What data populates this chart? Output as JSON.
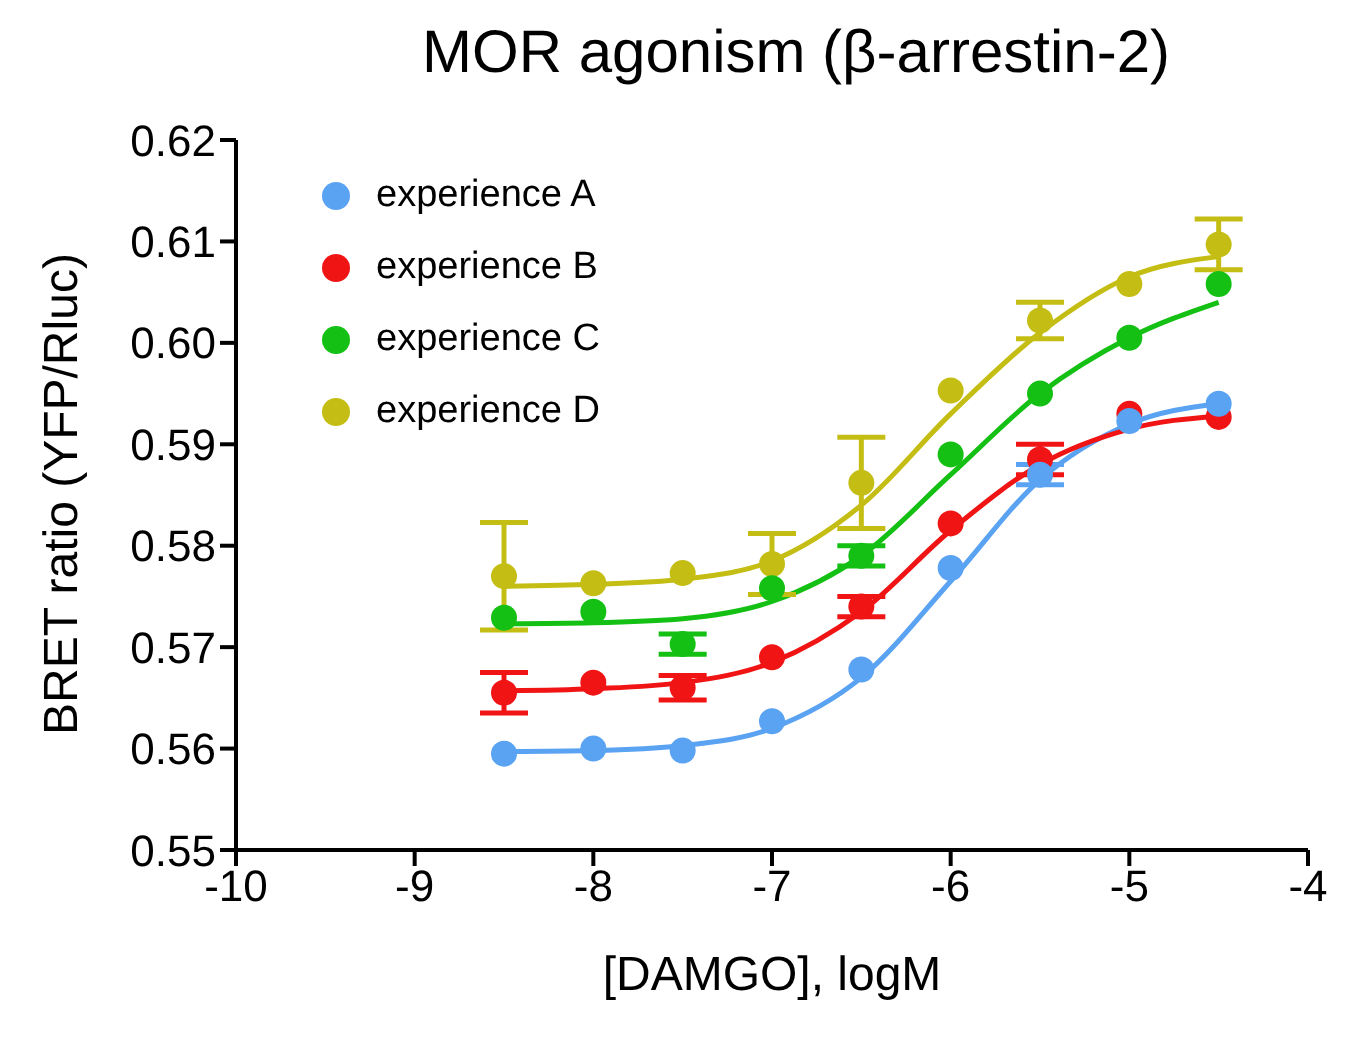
{
  "chart_data": {
    "type": "scatter",
    "title": "MOR agonism (β-arrestin-2)",
    "xlabel": "[DAMGO], logM",
    "ylabel": "BRET ratio (YFP/Rluc)",
    "x": [
      -8.5,
      -8,
      -7.5,
      -7,
      -6.5,
      -6,
      -5.5,
      -5,
      -4.5
    ],
    "series": [
      {
        "name": "experience A",
        "color": "#5aa2f2",
        "values": [
          0.5595,
          0.56,
          0.5598,
          0.5627,
          0.5678,
          0.5778,
          0.587,
          0.5923,
          0.594
        ],
        "errors": [
          null,
          null,
          null,
          null,
          null,
          null,
          0.001,
          null,
          null
        ]
      },
      {
        "name": "experience B",
        "color": "#f01414",
        "values": [
          0.5655,
          0.5665,
          0.566,
          0.569,
          0.574,
          0.5822,
          0.5885,
          0.593,
          0.5927
        ],
        "errors": [
          0.002,
          null,
          0.0012,
          null,
          0.001,
          null,
          0.0015,
          null,
          null
        ]
      },
      {
        "name": "experience C",
        "color": "#14c014",
        "values": [
          0.5729,
          0.5735,
          0.5703,
          0.5758,
          0.579,
          0.589,
          0.595,
          0.6005,
          0.6058
        ],
        "errors": [
          null,
          null,
          0.001,
          null,
          0.001,
          null,
          null,
          null,
          null
        ]
      },
      {
        "name": "experience D",
        "color": "#c4be14",
        "values": [
          0.577,
          0.5763,
          0.5773,
          0.5782,
          0.5862,
          0.5953,
          0.6022,
          0.6058,
          0.6097
        ],
        "errors": [
          0.0053,
          null,
          null,
          0.003,
          0.0045,
          null,
          0.0018,
          null,
          0.0025
        ]
      },
      {
        "type": "line",
        "color": "#5aa2f2",
        "marker": "none",
        "values": [
          0.5597,
          0.5598,
          0.5603,
          0.562,
          0.567,
          0.5765,
          0.5865,
          0.592,
          0.594
        ]
      },
      {
        "type": "line",
        "color": "#f01414",
        "marker": "none",
        "values": [
          0.5657,
          0.5659,
          0.5665,
          0.5685,
          0.5735,
          0.5815,
          0.588,
          0.5915,
          0.5928
        ]
      },
      {
        "type": "line",
        "color": "#14c014",
        "marker": "none",
        "values": [
          0.5723,
          0.5724,
          0.5728,
          0.5745,
          0.579,
          0.587,
          0.595,
          0.6005,
          0.604
        ]
      },
      {
        "type": "line",
        "color": "#c4be14",
        "marker": "none",
        "values": [
          0.576,
          0.5762,
          0.5767,
          0.5785,
          0.584,
          0.593,
          0.601,
          0.6065,
          0.6085
        ]
      }
    ],
    "marker": "circle",
    "line_style": "solid",
    "grid": false,
    "legend": "top left",
    "xlim": [
      -10,
      -4
    ],
    "xticks": [
      -10,
      -9,
      -8,
      -7,
      -6,
      -5,
      -4
    ],
    "ylim": [
      0.55,
      0.62
    ],
    "yticks": [
      0.55,
      0.56,
      0.57,
      0.58,
      0.59,
      {
        "value": 0.6,
        "label": "0.60"
      },
      0.61,
      0.62
    ]
  }
}
